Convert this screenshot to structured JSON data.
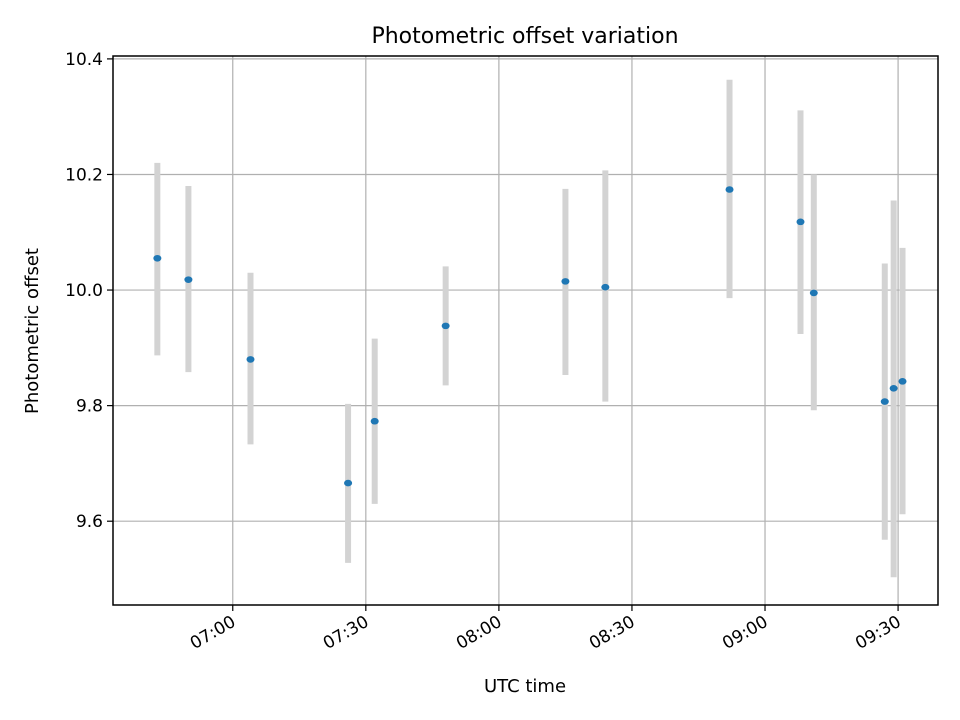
{
  "chart_data": {
    "type": "scatter",
    "title": "Photometric offset variation",
    "xlabel": "UTC time",
    "ylabel": "Photometric offset",
    "xlim": [
      "06:33",
      "09:39"
    ],
    "ylim": [
      9.455,
      10.405
    ],
    "x_ticks": [
      "07:00",
      "07:30",
      "08:00",
      "08:30",
      "09:00",
      "09:30"
    ],
    "y_ticks": [
      "9.6",
      "9.8",
      "10.0",
      "10.2",
      "10.4"
    ],
    "grid": true,
    "legend": "none",
    "colors": {
      "point": "#1f77b4",
      "errorbar": "#d3d3d3",
      "grid": "#b0b0b0"
    },
    "points": [
      {
        "x": "06:43",
        "y": 10.055,
        "yerr_low": 9.887,
        "yerr_high": 10.22
      },
      {
        "x": "06:50",
        "y": 10.018,
        "yerr_low": 9.858,
        "yerr_high": 10.18
      },
      {
        "x": "07:04",
        "y": 9.88,
        "yerr_low": 9.733,
        "yerr_high": 10.03
      },
      {
        "x": "07:26",
        "y": 9.666,
        "yerr_low": 9.528,
        "yerr_high": 9.803
      },
      {
        "x": "07:32",
        "y": 9.773,
        "yerr_low": 9.63,
        "yerr_high": 9.916
      },
      {
        "x": "07:48",
        "y": 9.938,
        "yerr_low": 9.835,
        "yerr_high": 10.041
      },
      {
        "x": "08:15",
        "y": 10.015,
        "yerr_low": 9.853,
        "yerr_high": 10.175
      },
      {
        "x": "08:24",
        "y": 10.005,
        "yerr_low": 9.807,
        "yerr_high": 10.207
      },
      {
        "x": "08:52",
        "y": 10.174,
        "yerr_low": 9.986,
        "yerr_high": 10.364
      },
      {
        "x": "09:08",
        "y": 10.118,
        "yerr_low": 9.924,
        "yerr_high": 10.311
      },
      {
        "x": "09:11",
        "y": 9.995,
        "yerr_low": 9.792,
        "yerr_high": 10.2
      },
      {
        "x": "09:27",
        "y": 9.807,
        "yerr_low": 9.568,
        "yerr_high": 10.046
      },
      {
        "x": "09:29",
        "y": 9.83,
        "yerr_low": 9.503,
        "yerr_high": 10.155
      },
      {
        "x": "09:31",
        "y": 9.842,
        "yerr_low": 9.612,
        "yerr_high": 10.073
      }
    ]
  }
}
